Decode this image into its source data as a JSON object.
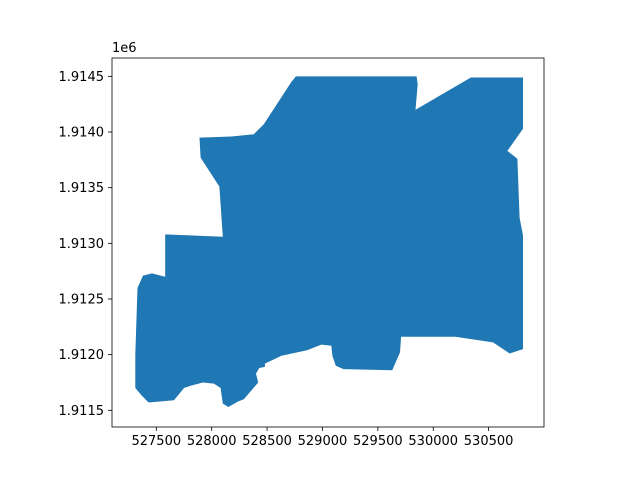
{
  "chart_data": {
    "type": "area",
    "title": "",
    "xlabel": "",
    "ylabel": "",
    "y_offset_label": "1e6",
    "xlim": [
      527100,
      531000
    ],
    "ylim": [
      1911350,
      1914665
    ],
    "x_ticks": [
      527500,
      528000,
      528500,
      529000,
      529500,
      530000,
      530500
    ],
    "x_tick_labels": [
      "527500",
      "528000",
      "528500",
      "529000",
      "529500",
      "530000",
      "530500"
    ],
    "y_ticks": [
      1911500,
      1912000,
      1912500,
      1913000,
      1913500,
      1914000,
      1914500
    ],
    "y_tick_labels": [
      "1.9115",
      "1.9120",
      "1.9125",
      "1.9130",
      "1.9135",
      "1.9140",
      "1.9145"
    ],
    "grid": false,
    "legend": "none",
    "fill_color": "#1f77b4",
    "polygon": [
      [
        528760,
        1914500
      ],
      [
        529850,
        1914500
      ],
      [
        529860,
        1914430
      ],
      [
        529840,
        1914200
      ],
      [
        530340,
        1914490
      ],
      [
        530810,
        1914490
      ],
      [
        530810,
        1914030
      ],
      [
        530670,
        1913830
      ],
      [
        530760,
        1913760
      ],
      [
        530780,
        1913230
      ],
      [
        530810,
        1913070
      ],
      [
        530810,
        1912050
      ],
      [
        530690,
        1912010
      ],
      [
        530540,
        1912110
      ],
      [
        530200,
        1912160
      ],
      [
        529710,
        1912160
      ],
      [
        529700,
        1912020
      ],
      [
        529630,
        1911860
      ],
      [
        529190,
        1911870
      ],
      [
        529120,
        1911900
      ],
      [
        529090,
        1911990
      ],
      [
        529080,
        1912080
      ],
      [
        528990,
        1912090
      ],
      [
        528860,
        1912040
      ],
      [
        528630,
        1911990
      ],
      [
        528480,
        1911920
      ],
      [
        528480,
        1911890
      ],
      [
        528430,
        1911880
      ],
      [
        528400,
        1911830
      ],
      [
        528420,
        1911750
      ],
      [
        528290,
        1911600
      ],
      [
        528240,
        1911580
      ],
      [
        528150,
        1911530
      ],
      [
        528100,
        1911560
      ],
      [
        528080,
        1911700
      ],
      [
        528020,
        1911740
      ],
      [
        527920,
        1911750
      ],
      [
        527810,
        1911720
      ],
      [
        527750,
        1911700
      ],
      [
        527660,
        1911590
      ],
      [
        527430,
        1911570
      ],
      [
        527370,
        1911630
      ],
      [
        527310,
        1911700
      ],
      [
        527310,
        1912000
      ],
      [
        527330,
        1912600
      ],
      [
        527380,
        1912710
      ],
      [
        527460,
        1912730
      ],
      [
        527580,
        1912700
      ],
      [
        527580,
        1913080
      ],
      [
        528100,
        1913060
      ],
      [
        528070,
        1913510
      ],
      [
        527900,
        1913770
      ],
      [
        527890,
        1913950
      ],
      [
        528180,
        1913960
      ],
      [
        528380,
        1913980
      ],
      [
        528470,
        1914070
      ],
      [
        528680,
        1914390
      ],
      [
        528720,
        1914450
      ]
    ]
  }
}
